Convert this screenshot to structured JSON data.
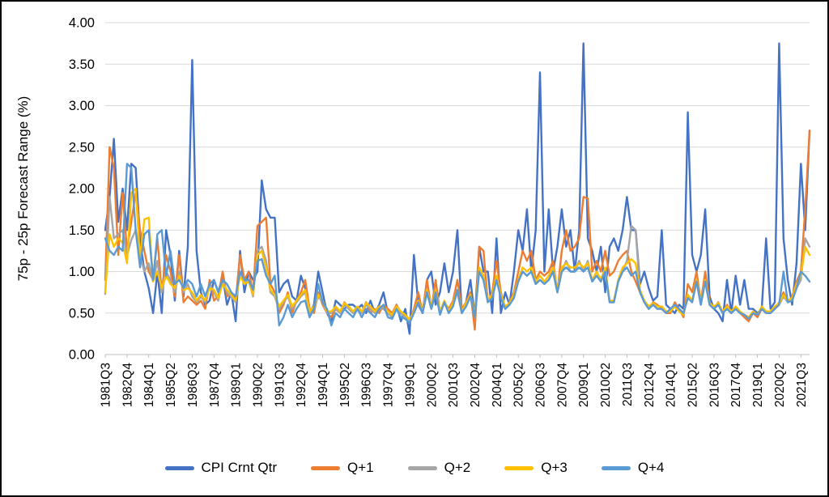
{
  "chart_data": {
    "type": "line",
    "title": "",
    "xlabel": "",
    "ylabel": "75p - 25p Forecast Range (%)",
    "ylim": [
      0,
      4
    ],
    "y_ticks": [
      "0.00",
      "0.50",
      "1.00",
      "1.50",
      "2.00",
      "2.50",
      "3.00",
      "3.50",
      "4.00"
    ],
    "x_tick_every": 5,
    "grid": true,
    "legend_position": "bottom",
    "categories": [
      "1981Q3",
      "1981Q4",
      "1982Q1",
      "1982Q2",
      "1982Q3",
      "1982Q4",
      "1983Q1",
      "1983Q2",
      "1983Q3",
      "1983Q4",
      "1984Q1",
      "1984Q2",
      "1984Q3",
      "1984Q4",
      "1985Q1",
      "1985Q2",
      "1985Q3",
      "1985Q4",
      "1986Q1",
      "1986Q2",
      "1986Q3",
      "1986Q4",
      "1987Q1",
      "1987Q2",
      "1987Q3",
      "1987Q4",
      "1988Q1",
      "1988Q2",
      "1988Q3",
      "1988Q4",
      "1989Q1",
      "1989Q2",
      "1989Q3",
      "1989Q4",
      "1990Q1",
      "1990Q2",
      "1990Q3",
      "1990Q4",
      "1991Q1",
      "1991Q2",
      "1991Q3",
      "1991Q4",
      "1992Q1",
      "1992Q2",
      "1992Q3",
      "1992Q4",
      "1993Q1",
      "1993Q2",
      "1993Q3",
      "1993Q4",
      "1994Q1",
      "1994Q2",
      "1994Q3",
      "1994Q4",
      "1995Q1",
      "1995Q2",
      "1995Q3",
      "1995Q4",
      "1996Q1",
      "1996Q2",
      "1996Q3",
      "1996Q4",
      "1997Q1",
      "1997Q2",
      "1997Q3",
      "1997Q4",
      "1998Q1",
      "1998Q2",
      "1998Q3",
      "1998Q4",
      "1999Q1",
      "1999Q2",
      "1999Q3",
      "1999Q4",
      "2000Q1",
      "2000Q2",
      "2000Q3",
      "2000Q4",
      "2001Q1",
      "2001Q2",
      "2001Q3",
      "2001Q4",
      "2002Q1",
      "2002Q2",
      "2002Q3",
      "2002Q4",
      "2003Q1",
      "2003Q2",
      "2003Q3",
      "2003Q4",
      "2004Q1",
      "2004Q2",
      "2004Q3",
      "2004Q4",
      "2005Q1",
      "2005Q2",
      "2005Q3",
      "2005Q4",
      "2006Q1",
      "2006Q2",
      "2006Q3",
      "2006Q4",
      "2007Q1",
      "2007Q2",
      "2007Q3",
      "2007Q4",
      "2008Q1",
      "2008Q2",
      "2008Q3",
      "2008Q4",
      "2009Q1",
      "2009Q2",
      "2009Q3",
      "2009Q4",
      "2010Q1",
      "2010Q2",
      "2010Q3",
      "2010Q4",
      "2011Q1",
      "2011Q2",
      "2011Q3",
      "2011Q4",
      "2012Q1",
      "2012Q2",
      "2012Q3",
      "2012Q4",
      "2013Q1",
      "2013Q2",
      "2013Q3",
      "2013Q4",
      "2014Q1",
      "2014Q2",
      "2014Q3",
      "2014Q4",
      "2015Q1",
      "2015Q2",
      "2015Q3",
      "2015Q4",
      "2016Q1",
      "2016Q2",
      "2016Q3",
      "2016Q4",
      "2017Q1",
      "2017Q2",
      "2017Q3",
      "2017Q4",
      "2018Q1",
      "2018Q2",
      "2018Q3",
      "2018Q4",
      "2019Q1",
      "2019Q2",
      "2019Q3",
      "2019Q4",
      "2020Q1",
      "2020Q2",
      "2020Q3",
      "2020Q4",
      "2021Q1",
      "2021Q2",
      "2021Q3",
      "2021Q4",
      "2022Q1"
    ],
    "series": [
      {
        "name": "CPI Crnt Qtr",
        "color": "#4472C4",
        "values": [
          1.5,
          1.9,
          2.6,
          1.6,
          2.0,
          1.5,
          2.3,
          2.25,
          1.4,
          1.0,
          0.8,
          0.5,
          1.0,
          0.5,
          1.5,
          1.2,
          0.65,
          1.25,
          0.7,
          1.3,
          3.55,
          1.25,
          0.75,
          0.6,
          0.65,
          0.9,
          0.75,
          0.95,
          0.6,
          0.75,
          0.4,
          1.25,
          0.75,
          1.0,
          0.9,
          1.0,
          2.1,
          1.75,
          1.65,
          1.65,
          0.75,
          0.85,
          0.9,
          0.7,
          0.65,
          0.95,
          0.8,
          0.5,
          0.6,
          1.0,
          0.75,
          0.5,
          0.4,
          0.65,
          0.6,
          0.55,
          0.6,
          0.6,
          0.55,
          0.6,
          0.5,
          0.65,
          0.5,
          0.6,
          0.75,
          0.5,
          0.45,
          0.6,
          0.4,
          0.55,
          0.25,
          1.2,
          0.6,
          0.5,
          0.9,
          1.0,
          0.6,
          0.75,
          1.1,
          0.75,
          1.0,
          1.5,
          0.5,
          0.63,
          0.9,
          0.45,
          1.3,
          1.0,
          1.0,
          0.5,
          1.4,
          0.5,
          0.75,
          0.6,
          1.0,
          1.5,
          1.25,
          1.75,
          1.0,
          1.5,
          3.4,
          1.0,
          1.75,
          1.0,
          1.3,
          1.75,
          1.3,
          1.5,
          1.0,
          1.5,
          3.75,
          1.4,
          1.25,
          1.0,
          1.3,
          0.75,
          1.3,
          1.4,
          1.25,
          1.5,
          1.9,
          1.5,
          1.5,
          0.85,
          1.0,
          0.8,
          0.65,
          0.7,
          1.5,
          0.6,
          0.55,
          0.5,
          0.6,
          0.55,
          2.92,
          1.2,
          1.0,
          1.2,
          1.75,
          0.7,
          0.55,
          0.5,
          0.4,
          0.9,
          0.5,
          0.95,
          0.6,
          0.9,
          0.55,
          0.55,
          0.5,
          0.55,
          1.4,
          0.55,
          0.63,
          3.75,
          1.4,
          0.9,
          0.6,
          1.1,
          2.3,
          1.5,
          2.7
        ]
      },
      {
        "name": "Q+1",
        "color": "#ED7D31",
        "values": [
          0.9,
          2.5,
          2.25,
          1.2,
          1.95,
          1.25,
          1.6,
          1.95,
          1.5,
          1.25,
          1.0,
          0.9,
          1.4,
          0.75,
          1.2,
          1.0,
          0.7,
          1.2,
          0.63,
          0.7,
          0.65,
          0.6,
          0.65,
          0.55,
          0.9,
          0.65,
          0.7,
          1.0,
          0.7,
          0.75,
          0.65,
          1.2,
          0.9,
          1.0,
          0.75,
          1.55,
          1.6,
          1.65,
          0.85,
          0.75,
          0.5,
          0.6,
          0.75,
          0.5,
          0.65,
          0.75,
          0.9,
          0.55,
          0.5,
          0.75,
          0.6,
          0.5,
          0.45,
          0.55,
          0.5,
          0.63,
          0.55,
          0.5,
          0.55,
          0.5,
          0.63,
          0.5,
          0.55,
          0.5,
          0.6,
          0.55,
          0.5,
          0.6,
          0.5,
          0.45,
          0.4,
          0.55,
          0.75,
          0.5,
          0.9,
          0.55,
          0.9,
          0.5,
          0.63,
          0.55,
          0.65,
          0.9,
          0.55,
          0.63,
          0.75,
          0.3,
          1.3,
          1.25,
          0.63,
          0.75,
          1.13,
          0.75,
          0.55,
          0.63,
          0.75,
          1.0,
          1.25,
          1.13,
          1.25,
          0.9,
          1.0,
          0.95,
          1.0,
          1.13,
          0.75,
          1.25,
          1.5,
          1.25,
          1.3,
          1.4,
          1.9,
          1.88,
          1.0,
          1.13,
          1.0,
          1.25,
          0.95,
          1.0,
          1.13,
          1.2,
          1.25,
          1.0,
          0.88,
          0.75,
          0.63,
          0.55,
          0.63,
          0.6,
          0.55,
          0.5,
          0.5,
          0.63,
          0.55,
          0.45,
          0.85,
          0.75,
          1.0,
          0.63,
          1.0,
          0.63,
          0.55,
          0.63,
          0.5,
          0.6,
          0.5,
          0.55,
          0.5,
          0.45,
          0.4,
          0.5,
          0.45,
          0.55,
          0.5,
          0.5,
          0.55,
          0.63,
          0.75,
          0.63,
          0.7,
          0.88,
          1.0,
          1.75,
          2.7
        ]
      },
      {
        "name": "Q+2",
        "color": "#A5A5A5",
        "values": [
          0.73,
          1.9,
          1.4,
          1.45,
          1.5,
          1.2,
          1.38,
          1.5,
          1.2,
          1.0,
          1.1,
          0.88,
          1.13,
          0.75,
          1.0,
          0.9,
          0.75,
          1.0,
          0.75,
          0.85,
          0.7,
          0.63,
          0.7,
          0.63,
          0.85,
          0.75,
          0.65,
          0.9,
          0.75,
          0.7,
          0.63,
          1.0,
          0.88,
          0.9,
          0.7,
          1.25,
          1.3,
          1.13,
          0.75,
          0.7,
          0.55,
          0.63,
          0.7,
          0.55,
          0.63,
          0.7,
          0.75,
          0.5,
          0.55,
          0.7,
          0.63,
          0.5,
          0.5,
          0.55,
          0.5,
          0.6,
          0.55,
          0.5,
          0.55,
          0.5,
          0.6,
          0.55,
          0.5,
          0.55,
          0.55,
          0.5,
          0.45,
          0.55,
          0.5,
          0.45,
          0.4,
          0.5,
          0.63,
          0.5,
          0.75,
          0.55,
          0.75,
          0.5,
          0.63,
          0.5,
          0.6,
          0.75,
          0.5,
          0.6,
          0.7,
          0.45,
          1.0,
          0.9,
          0.63,
          0.7,
          0.9,
          0.7,
          0.55,
          0.6,
          0.7,
          0.88,
          1.0,
          0.95,
          1.0,
          0.85,
          0.9,
          0.85,
          0.9,
          1.0,
          0.75,
          1.0,
          1.13,
          1.0,
          1.0,
          1.13,
          1.0,
          1.13,
          0.88,
          0.95,
          0.88,
          1.0,
          0.63,
          0.63,
          0.88,
          1.0,
          1.13,
          1.55,
          1.5,
          0.75,
          0.63,
          0.55,
          0.6,
          0.55,
          0.55,
          0.5,
          0.55,
          0.6,
          0.55,
          0.5,
          0.7,
          0.63,
          0.88,
          0.6,
          0.88,
          0.6,
          0.55,
          0.6,
          0.5,
          0.55,
          0.5,
          0.55,
          0.5,
          0.48,
          0.45,
          0.5,
          0.48,
          0.55,
          0.5,
          0.5,
          0.55,
          0.6,
          0.7,
          0.63,
          0.65,
          0.8,
          0.9,
          1.4,
          1.3
        ]
      },
      {
        "name": "Q+3",
        "color": "#FFC000",
        "values": [
          0.75,
          1.45,
          1.3,
          1.4,
          1.35,
          1.1,
          1.95,
          2.0,
          1.15,
          1.63,
          1.65,
          0.88,
          1.0,
          0.8,
          0.95,
          0.85,
          0.8,
          0.95,
          0.78,
          0.8,
          0.75,
          0.65,
          0.72,
          0.65,
          0.8,
          0.78,
          0.68,
          0.85,
          0.78,
          0.72,
          0.65,
          0.95,
          0.85,
          0.88,
          0.72,
          1.2,
          1.25,
          1.05,
          0.78,
          0.72,
          0.58,
          0.65,
          0.72,
          0.58,
          0.65,
          0.72,
          0.78,
          0.52,
          0.58,
          0.72,
          0.65,
          0.52,
          0.52,
          0.58,
          0.52,
          0.62,
          0.58,
          0.52,
          0.58,
          0.52,
          0.62,
          0.58,
          0.52,
          0.58,
          0.58,
          0.52,
          0.48,
          0.58,
          0.52,
          0.48,
          0.42,
          0.52,
          0.65,
          0.52,
          0.78,
          0.58,
          0.78,
          0.52,
          0.65,
          0.52,
          0.62,
          0.78,
          0.52,
          0.62,
          0.72,
          0.48,
          1.05,
          0.95,
          0.65,
          0.72,
          0.95,
          0.72,
          0.58,
          0.62,
          0.72,
          0.9,
          1.05,
          1.0,
          1.05,
          0.88,
          0.95,
          0.88,
          0.95,
          1.05,
          0.78,
          1.05,
          1.1,
          1.05,
          1.05,
          1.1,
          1.05,
          1.1,
          0.9,
          1.0,
          0.9,
          1.05,
          0.65,
          0.65,
          0.9,
          1.05,
          1.1,
          1.15,
          1.1,
          0.78,
          0.65,
          0.58,
          0.62,
          0.58,
          0.58,
          0.52,
          0.52,
          0.58,
          0.52,
          0.48,
          0.72,
          0.65,
          0.9,
          0.62,
          0.9,
          0.62,
          0.58,
          0.62,
          0.52,
          0.58,
          0.52,
          0.58,
          0.52,
          0.48,
          0.45,
          0.52,
          0.48,
          0.58,
          0.52,
          0.52,
          0.58,
          0.62,
          0.72,
          0.65,
          0.68,
          0.85,
          0.95,
          1.3,
          1.2
        ]
      },
      {
        "name": "Q+4",
        "color": "#5B9BD5",
        "values": [
          1.4,
          1.25,
          1.2,
          1.3,
          1.25,
          2.3,
          2.25,
          1.5,
          1.05,
          1.45,
          1.5,
          0.9,
          1.45,
          1.5,
          0.95,
          1.25,
          0.85,
          0.9,
          0.8,
          0.9,
          0.85,
          0.7,
          0.85,
          0.7,
          0.85,
          0.9,
          0.75,
          0.9,
          0.85,
          0.75,
          0.7,
          1.0,
          0.9,
          0.9,
          0.78,
          1.13,
          1.15,
          0.95,
          0.85,
          0.95,
          0.35,
          0.45,
          0.6,
          0.45,
          0.55,
          0.63,
          0.65,
          0.45,
          0.55,
          0.85,
          0.63,
          0.55,
          0.35,
          0.5,
          0.45,
          0.55,
          0.5,
          0.45,
          0.55,
          0.45,
          0.55,
          0.5,
          0.45,
          0.55,
          0.6,
          0.45,
          0.43,
          0.55,
          0.45,
          0.43,
          0.38,
          0.5,
          0.63,
          0.5,
          0.75,
          0.55,
          0.75,
          0.48,
          0.63,
          0.5,
          0.58,
          0.78,
          0.5,
          0.58,
          0.7,
          0.45,
          1.0,
          0.9,
          0.63,
          0.68,
          0.9,
          0.68,
          0.55,
          0.6,
          0.68,
          0.88,
          1.0,
          0.95,
          1.0,
          0.85,
          0.9,
          0.85,
          0.9,
          1.0,
          0.75,
          1.0,
          1.05,
          1.0,
          1.0,
          1.05,
          1.0,
          1.05,
          0.88,
          0.95,
          0.88,
          1.0,
          0.63,
          0.63,
          0.88,
          1.0,
          1.05,
          0.95,
          1.0,
          0.75,
          0.63,
          0.55,
          0.6,
          0.55,
          0.55,
          0.5,
          0.55,
          0.6,
          0.55,
          0.5,
          0.68,
          0.63,
          0.88,
          0.6,
          0.88,
          0.6,
          0.55,
          0.6,
          0.5,
          0.55,
          0.5,
          0.55,
          0.5,
          0.48,
          0.43,
          0.5,
          0.48,
          0.55,
          0.5,
          0.5,
          0.55,
          0.6,
          1.0,
          0.63,
          0.65,
          0.8,
          1.0,
          0.95,
          0.88
        ]
      }
    ]
  }
}
